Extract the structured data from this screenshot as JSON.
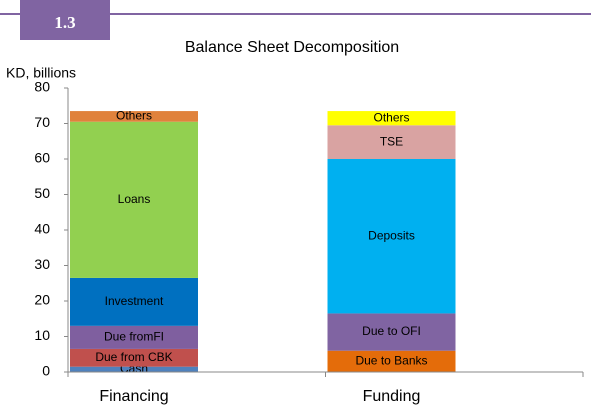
{
  "chart_data": {
    "type": "stacked_bar",
    "badge": "1.3",
    "title": "Balance Sheet Decomposition",
    "y_label": "KD, billions",
    "categories": [
      "Financing",
      "Funding"
    ],
    "series": [
      {
        "name": "Cash",
        "color": "#4f81bd",
        "values": [
          1.5,
          null
        ]
      },
      {
        "name": "Due from CBK",
        "color": "#c0504d",
        "values": [
          5,
          null
        ]
      },
      {
        "name": "Due fromFI",
        "color": "#7f5f9f",
        "values": [
          6.5,
          null
        ]
      },
      {
        "name": "Investment",
        "color": "#0070c0",
        "values": [
          13.5,
          null
        ]
      },
      {
        "name": "Loans",
        "color": "#92d050",
        "values": [
          44,
          null
        ]
      },
      {
        "name": "Others",
        "color": "#e0823c",
        "values": [
          3,
          null
        ]
      },
      {
        "name": "Due to Banks",
        "color": "#e46c0a",
        "values": [
          null,
          6
        ]
      },
      {
        "name": "Due to OFI",
        "color": "#8064a2",
        "values": [
          null,
          10.5
        ]
      },
      {
        "name": "Deposits",
        "color": "#00b0f0",
        "values": [
          null,
          43.5
        ]
      },
      {
        "name": "TSE",
        "color": "#d9a3a2",
        "values": [
          null,
          9.5
        ]
      },
      {
        "name": "Others",
        "color": "#ffff00",
        "values": [
          null,
          4
        ]
      }
    ],
    "ylim": [
      0,
      80
    ],
    "yticks": [
      0,
      10,
      20,
      30,
      40,
      50,
      60,
      70,
      80
    ],
    "grid": false
  }
}
